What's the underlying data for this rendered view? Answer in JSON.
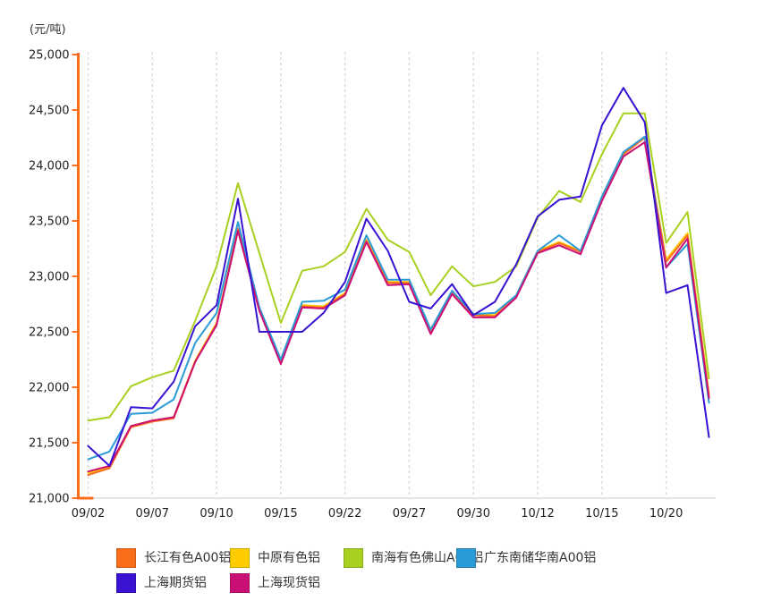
{
  "title": "(元/吨)",
  "chart_data": {
    "type": "line",
    "title": "",
    "ylabel": "(元/吨)",
    "xlabel": "",
    "ylim": [
      21000,
      25000
    ],
    "y_tick_step": 500,
    "y_tick_labels": [
      "25,000",
      "24,500",
      "24,000",
      "23,500",
      "23,000",
      "22,500",
      "22,000",
      "21,500",
      "21,000"
    ],
    "x_tick_labels": [
      "09/02",
      "09/07",
      "09/10",
      "09/15",
      "09/22",
      "09/27",
      "09/30",
      "10/12",
      "10/15",
      "10/20"
    ],
    "x_tick_indices": [
      0,
      3,
      6,
      9,
      12,
      15,
      18,
      21,
      24,
      27
    ],
    "n_points": 30,
    "grid": "vertical-dashed",
    "legend_position": "bottom",
    "axis_colors": {
      "y_axis": "#fa6e1b",
      "x_axis": "#e4e4e4",
      "grid": "#dcdcdc",
      "tick_text": "#222222"
    },
    "series": [
      {
        "name": "长江有色A00铝",
        "color": "#fa6e1b",
        "values": [
          21210,
          21270,
          21640,
          21690,
          21720,
          22230,
          22570,
          23430,
          22700,
          22220,
          22730,
          22720,
          22840,
          23320,
          22940,
          22940,
          22500,
          22850,
          22650,
          22640,
          22820,
          23220,
          23300,
          23220,
          23700,
          24100,
          24250,
          23130,
          23370,
          21920
        ]
      },
      {
        "name": "中原有色铝",
        "color": "#ffcc00",
        "values": [
          21230,
          21280,
          21650,
          21700,
          21730,
          22240,
          22580,
          23420,
          22710,
          22230,
          22740,
          22730,
          22850,
          23330,
          22950,
          22950,
          22510,
          22860,
          22660,
          22650,
          22830,
          23230,
          23310,
          23230,
          23710,
          24110,
          24260,
          23150,
          23390,
          21940
        ]
      },
      {
        "name": "南海有色佛山A00铝",
        "color": "#a8d020",
        "values": [
          21700,
          21730,
          22010,
          22090,
          22150,
          22600,
          23090,
          23840,
          23210,
          22580,
          23050,
          23090,
          23220,
          23610,
          23330,
          23220,
          22830,
          23090,
          22910,
          22950,
          23090,
          23530,
          23770,
          23670,
          24100,
          24470,
          24470,
          23300,
          23580,
          22080
        ]
      },
      {
        "name": "广东南储华南A00铝",
        "color": "#2b9bd7",
        "values": [
          21350,
          21420,
          21760,
          21770,
          21890,
          22400,
          22670,
          23490,
          22720,
          22250,
          22770,
          22780,
          22880,
          23370,
          22970,
          22970,
          22520,
          22870,
          22660,
          22670,
          22830,
          23230,
          23370,
          23230,
          23720,
          24120,
          24260,
          23080,
          23290,
          21860
        ]
      },
      {
        "name": "上海期货铝",
        "color": "#3912d2",
        "values": [
          21470,
          21290,
          21820,
          21810,
          22050,
          22550,
          22740,
          23700,
          22500,
          22500,
          22500,
          22670,
          22950,
          23520,
          23230,
          22770,
          22710,
          22930,
          22650,
          22770,
          23110,
          23540,
          23690,
          23720,
          24360,
          24700,
          24390,
          22850,
          22920,
          21550
        ]
      },
      {
        "name": "上海现货铝",
        "color": "#cb0f75",
        "values": [
          21240,
          21290,
          21650,
          21700,
          21730,
          22230,
          22560,
          23410,
          22690,
          22210,
          22720,
          22710,
          22830,
          23310,
          22920,
          22930,
          22480,
          22840,
          22630,
          22630,
          22810,
          23210,
          23280,
          23200,
          23680,
          24080,
          24210,
          23080,
          23340,
          21900
        ]
      }
    ]
  },
  "legend": {
    "rows": [
      [
        0,
        1,
        2,
        3
      ],
      [
        4,
        5
      ]
    ]
  }
}
